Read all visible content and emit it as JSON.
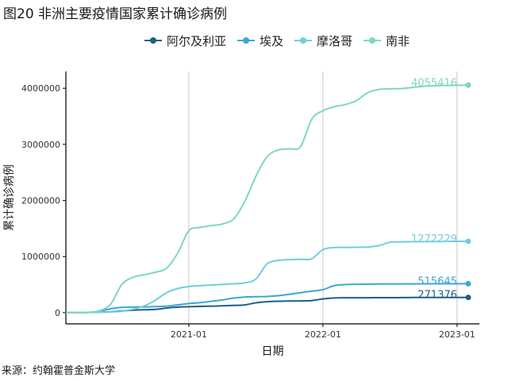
{
  "title": "图20 非洲主要疫情国家累计确诊病例",
  "source": "来源：约翰霍普金斯大学",
  "legend": [
    {
      "name": "阿尔及利亚",
      "color": "#1f5f86"
    },
    {
      "name": "埃及",
      "color": "#3ba7d6"
    },
    {
      "name": "摩洛哥",
      "color": "#6fcfdc"
    },
    {
      "name": "南非",
      "color": "#7dd8c0"
    }
  ],
  "chart_data": {
    "type": "line",
    "title": "图20 非洲主要疫情国家累计确诊病例",
    "xlabel": "日期",
    "ylabel": "累计确诊病例",
    "x_ticks": [
      "2021-01",
      "2022-01",
      "2023-01"
    ],
    "y_ticks": [
      "0",
      "1000000",
      "2000000",
      "3000000",
      "4000000"
    ],
    "xlim": [
      "2020-02",
      "2023-03"
    ],
    "ylim": [
      -200000,
      4300000
    ],
    "grid": "vertical",
    "legend_position": "top",
    "x": [
      "2020-02",
      "2020-03",
      "2020-04",
      "2020-05",
      "2020-06",
      "2020-07",
      "2020-08",
      "2020-09",
      "2020-10",
      "2020-11",
      "2020-12",
      "2021-01",
      "2021-02",
      "2021-03",
      "2021-04",
      "2021-05",
      "2021-06",
      "2021-07",
      "2021-08",
      "2021-09",
      "2021-10",
      "2021-11",
      "2021-12",
      "2022-01",
      "2022-02",
      "2022-03",
      "2022-04",
      "2022-05",
      "2022-06",
      "2022-07",
      "2022-08",
      "2022-09",
      "2022-10",
      "2022-11",
      "2022-12",
      "2023-01",
      "2023-02"
    ],
    "series": [
      {
        "name": "阿尔及利亚",
        "color": "#1f5f86",
        "end_label": "271376",
        "values": [
          0,
          500,
          4000,
          9000,
          14000,
          29000,
          44000,
          51000,
          57000,
          81000,
          99000,
          106000,
          112000,
          116000,
          121000,
          128000,
          138000,
          175000,
          195000,
          203000,
          206000,
          209000,
          215000,
          245000,
          262000,
          265000,
          265500,
          266000,
          266500,
          267000,
          268000,
          269500,
          270500,
          270800,
          271000,
          271200,
          271376
        ]
      },
      {
        "name": "埃及",
        "color": "#3ba7d6",
        "end_label": "515645",
        "values": [
          0,
          700,
          5500,
          24000,
          69000,
          94000,
          99000,
          102000,
          107000,
          116000,
          138000,
          162000,
          178000,
          202000,
          226000,
          260000,
          278000,
          284000,
          288000,
          303000,
          326000,
          356000,
          383000,
          410000,
          480000,
          500000,
          505000,
          508000,
          510000,
          511000,
          512000,
          513000,
          514000,
          514500,
          515000,
          515300,
          515645
        ]
      },
      {
        "name": "摩洛哥",
        "color": "#6fcfdc",
        "end_label": "1272229",
        "values": [
          0,
          600,
          4500,
          7800,
          12500,
          24000,
          62000,
          118000,
          220000,
          355000,
          430000,
          465000,
          480000,
          492000,
          505000,
          515000,
          530000,
          600000,
          870000,
          930000,
          945000,
          950000,
          960000,
          1125000,
          1160000,
          1163000,
          1165000,
          1168000,
          1195000,
          1255000,
          1262000,
          1265000,
          1266000,
          1267000,
          1270000,
          1271500,
          1272229
        ]
      },
      {
        "name": "南非",
        "color": "#7dd8c0",
        "end_label": "4055416",
        "values": [
          0,
          1400,
          5700,
          33000,
          150000,
          500000,
          630000,
          675000,
          720000,
          790000,
          1060000,
          1460000,
          1520000,
          1550000,
          1580000,
          1670000,
          1980000,
          2430000,
          2780000,
          2900000,
          2920000,
          2960000,
          3450000,
          3600000,
          3670000,
          3710000,
          3780000,
          3920000,
          3980000,
          3990000,
          3995000,
          4015000,
          4035000,
          4045000,
          4050000,
          4053000,
          4055416
        ]
      }
    ]
  }
}
